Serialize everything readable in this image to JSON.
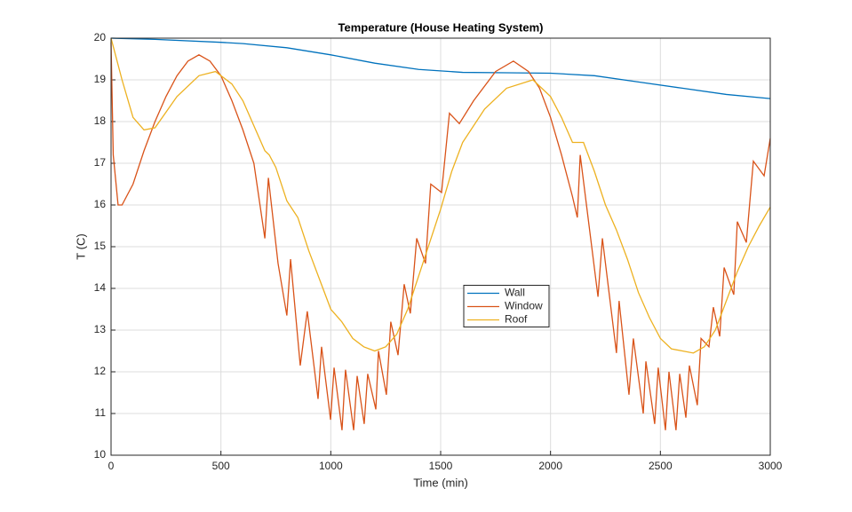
{
  "chart_data": {
    "type": "line",
    "title": "Temperature (House Heating System)",
    "x_label": "Time (min)",
    "y_label": "T (C)",
    "xlim": [
      0,
      3000
    ],
    "ylim": [
      10,
      20
    ],
    "xticks": [
      0,
      500,
      1000,
      1500,
      2000,
      2500,
      3000
    ],
    "yticks": [
      10,
      11,
      12,
      13,
      14,
      15,
      16,
      17,
      18,
      19,
      20
    ],
    "grid": true,
    "legend": "center",
    "series": [
      {
        "name": "Wall",
        "color": "#0072BD",
        "x": [
          0,
          200,
          500,
          600,
          800,
          1000,
          1200,
          1400,
          1600,
          1800,
          2000,
          2200,
          2400,
          2600,
          2800,
          3000
        ],
        "values": [
          20,
          19.97,
          19.9,
          19.87,
          19.77,
          19.6,
          19.4,
          19.25,
          19.18,
          19.17,
          19.16,
          19.1,
          18.95,
          18.8,
          18.65,
          18.55
        ]
      },
      {
        "name": "Window",
        "color": "#D95319",
        "x": [
          0,
          10,
          32,
          50,
          100,
          150,
          200,
          250,
          300,
          350,
          400,
          450,
          500,
          550,
          600,
          650,
          700,
          716,
          760,
          800,
          817,
          861,
          893,
          942,
          958,
          999,
          1015,
          1051,
          1067,
          1104,
          1120,
          1152,
          1168,
          1205,
          1217,
          1253,
          1273,
          1306,
          1334,
          1362,
          1391,
          1431,
          1455,
          1504,
          1540,
          1585,
          1650,
          1750,
          1831,
          1900,
          1950,
          2000,
          2050,
          2100,
          2122,
          2135,
          2216,
          2236,
          2300,
          2312,
          2357,
          2377,
          2422,
          2434,
          2474,
          2490,
          2523,
          2539,
          2571,
          2588,
          2616,
          2632,
          2668,
          2685,
          2721,
          2741,
          2770,
          2790,
          2834,
          2850,
          2891,
          2923,
          2972,
          3000
        ],
        "values": [
          19.9,
          17.2,
          16.0,
          16.0,
          16.5,
          17.3,
          18.0,
          18.6,
          19.1,
          19.45,
          19.6,
          19.45,
          19.1,
          18.5,
          17.8,
          17.0,
          15.2,
          16.65,
          14.6,
          13.35,
          14.7,
          12.15,
          13.45,
          11.35,
          12.6,
          10.85,
          12.1,
          10.6,
          12.05,
          10.6,
          11.9,
          10.75,
          11.95,
          11.1,
          12.5,
          11.45,
          13.2,
          12.4,
          14.1,
          13.4,
          15.2,
          14.6,
          16.5,
          16.3,
          18.2,
          17.95,
          18.5,
          19.2,
          19.45,
          19.2,
          18.8,
          18.1,
          17.2,
          16.2,
          15.7,
          17.2,
          13.8,
          15.2,
          12.45,
          13.7,
          11.45,
          12.8,
          11.0,
          12.25,
          10.75,
          12.1,
          10.6,
          12.0,
          10.6,
          11.95,
          10.9,
          12.15,
          11.2,
          12.8,
          12.6,
          13.55,
          12.85,
          14.5,
          13.85,
          15.6,
          15.1,
          17.05,
          16.7,
          17.6
        ]
      },
      {
        "name": "Roof",
        "color": "#EDB120",
        "x": [
          0,
          50,
          100,
          150,
          200,
          300,
          400,
          475,
          550,
          600,
          650,
          700,
          720,
          750,
          800,
          850,
          900,
          950,
          1000,
          1050,
          1100,
          1150,
          1200,
          1250,
          1300,
          1350,
          1400,
          1450,
          1500,
          1550,
          1600,
          1700,
          1800,
          1920,
          2000,
          2050,
          2100,
          2150,
          2200,
          2250,
          2300,
          2350,
          2400,
          2450,
          2500,
          2550,
          2600,
          2650,
          2700,
          2750,
          2800,
          2850,
          2900,
          2950,
          3000
        ],
        "values": [
          20,
          19.0,
          18.1,
          17.8,
          17.85,
          18.6,
          19.1,
          19.2,
          18.9,
          18.5,
          17.9,
          17.3,
          17.2,
          16.9,
          16.1,
          15.7,
          14.9,
          14.2,
          13.5,
          13.2,
          12.8,
          12.6,
          12.5,
          12.6,
          12.9,
          13.5,
          14.3,
          15.1,
          15.9,
          16.8,
          17.5,
          18.3,
          18.8,
          19.0,
          18.6,
          18.1,
          17.5,
          17.5,
          16.8,
          16.0,
          15.4,
          14.7,
          13.9,
          13.3,
          12.8,
          12.55,
          12.5,
          12.45,
          12.6,
          13.0,
          13.7,
          14.4,
          15.0,
          15.5,
          15.95
        ]
      }
    ]
  }
}
